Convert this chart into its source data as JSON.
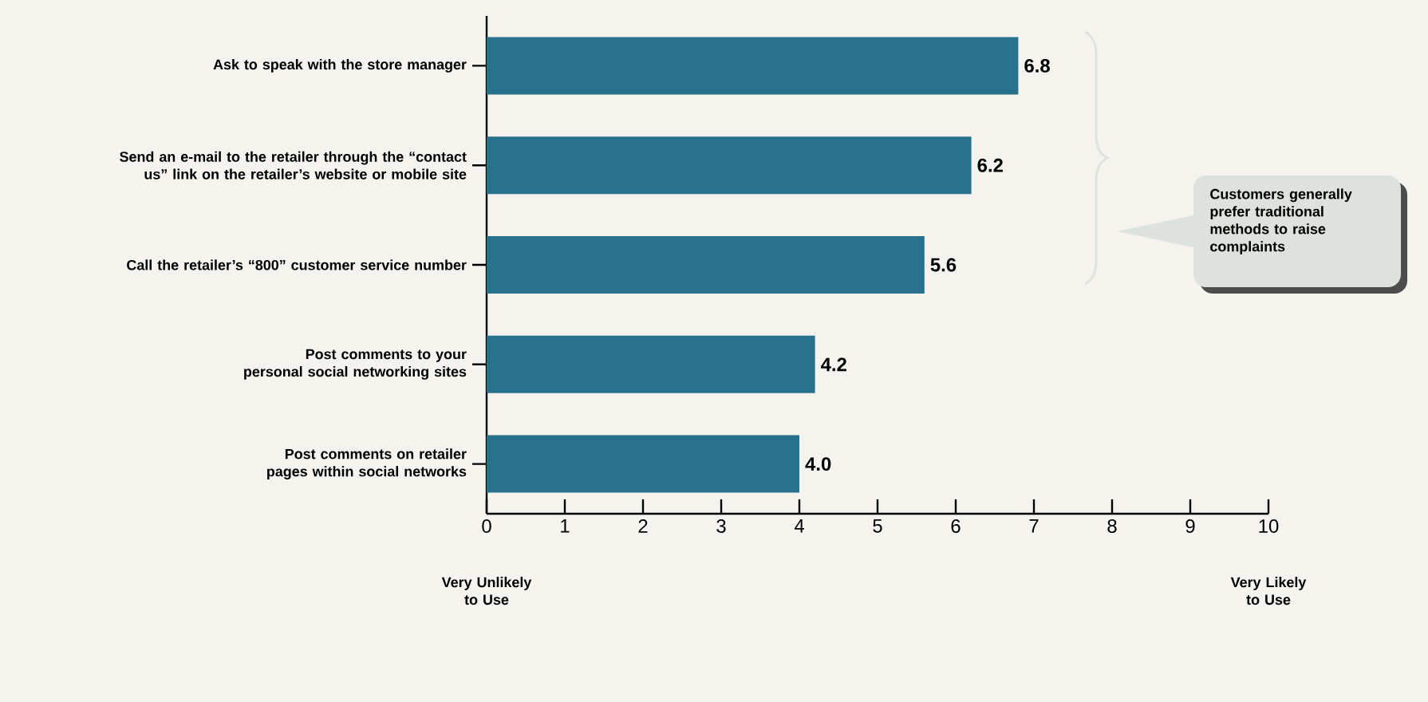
{
  "chart_data": {
    "type": "bar",
    "orientation": "horizontal",
    "categories": [
      "Ask to speak with the store manager",
      "Send an e-mail to the retailer through the “contact us” link on the retailer’s website or mobile site",
      "Call the retailer’s “800” customer service number",
      "Post comments to your personal social networking sites",
      "Post comments on retailer pages within social networks"
    ],
    "values": [
      6.8,
      6.2,
      5.6,
      4.2,
      4.0
    ],
    "value_labels": [
      "6.8",
      "6.2",
      "5.6",
      "4.2",
      "4.0"
    ],
    "color": "#27718c",
    "xlim": [
      0,
      10
    ],
    "xticks": [
      0,
      1,
      2,
      3,
      4,
      5,
      6,
      7,
      8,
      9,
      10
    ],
    "annotations": [
      "Very Unlikely to Use",
      "Very Likely to Use",
      "Customers generally prefer traditional methods to raise complaints"
    ]
  }
}
